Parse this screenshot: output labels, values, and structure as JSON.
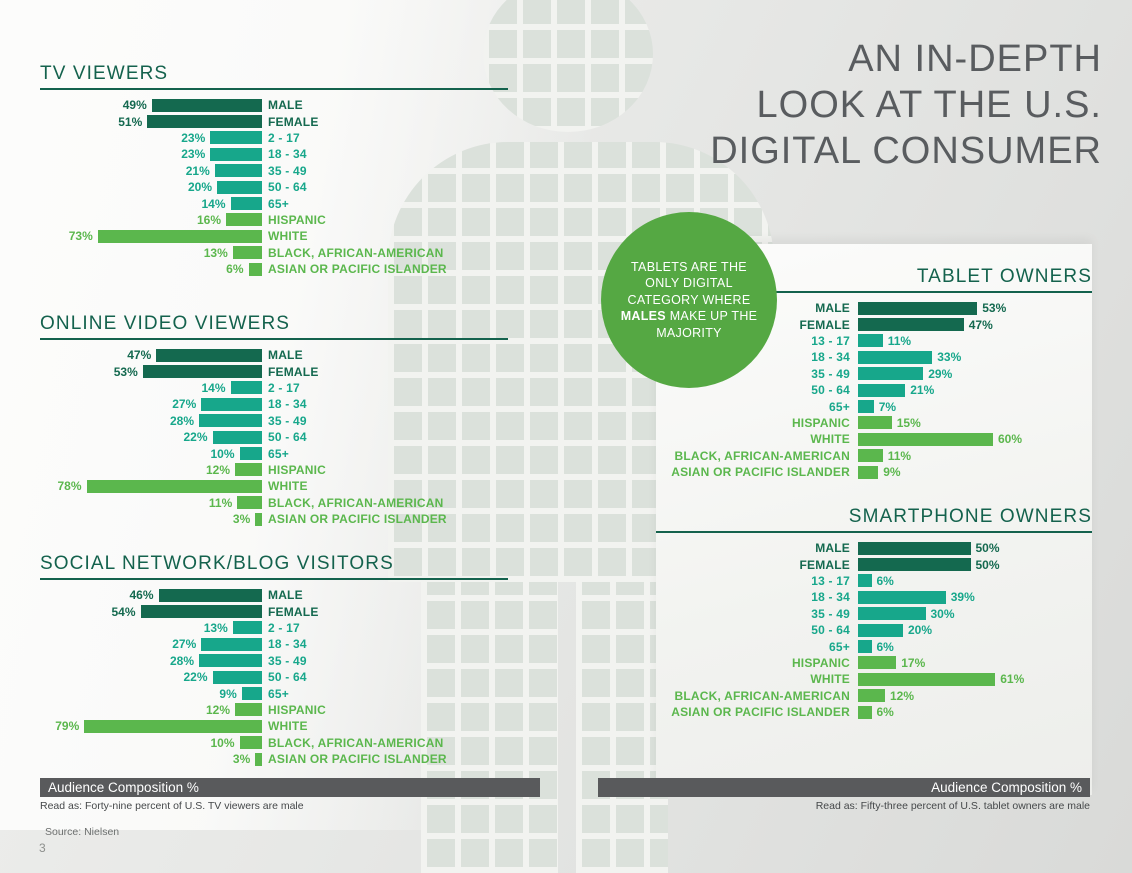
{
  "header": {
    "title_lines": [
      "AN IN-DEPTH",
      "LOOK AT THE U.S.",
      "DIGITAL CONSUMER"
    ]
  },
  "callout": {
    "text_pre": "TABLETS ARE THE ONLY DIGITAL CATEGORY WHERE",
    "bold_word": "MALES",
    "text_post": "MAKE UP THE MAJORITY"
  },
  "footer": {
    "left": {
      "bar_label": "Audience Composition %",
      "read_as": "Read as: Forty-nine percent of U.S. TV viewers are male"
    },
    "right": {
      "bar_label": "Audience Composition %",
      "read_as": "Read as: Fifty-three percent of U.S. tablet owners are male"
    },
    "source": "Source: Nielsen",
    "page_number": "3"
  },
  "colors": {
    "gender": "#14694f",
    "age": "#17a78b",
    "ethnicity": "#5bb74d",
    "section_title": "#14624d",
    "heading_text": "#595c5f",
    "footer_bar": "#595a5c",
    "callout_bg": "#55a843"
  },
  "chart_data": [
    {
      "id": "tv-viewers",
      "type": "bar",
      "orientation": "horizontal",
      "title": "TV VIEWERS",
      "unit": "%",
      "xlabel": "Audience Composition %",
      "categories": [
        "MALE",
        "FEMALE",
        "2 - 17",
        "18 - 34",
        "35 - 49",
        "50 - 64",
        "65+",
        "HISPANIC",
        "WHITE",
        "BLACK, AFRICAN-AMERICAN",
        "ASIAN OR PACIFIC ISLANDER"
      ],
      "values": [
        49,
        51,
        23,
        23,
        21,
        20,
        14,
        16,
        73,
        13,
        6
      ],
      "groups": [
        "gender",
        "gender",
        "age",
        "age",
        "age",
        "age",
        "age",
        "ethnicity",
        "ethnicity",
        "ethnicity",
        "ethnicity"
      ]
    },
    {
      "id": "online-video-viewers",
      "type": "bar",
      "orientation": "horizontal",
      "title": "ONLINE VIDEO VIEWERS",
      "unit": "%",
      "xlabel": "Audience Composition %",
      "categories": [
        "MALE",
        "FEMALE",
        "2 - 17",
        "18 - 34",
        "35 - 49",
        "50 - 64",
        "65+",
        "HISPANIC",
        "WHITE",
        "BLACK, AFRICAN-AMERICAN",
        "ASIAN OR PACIFIC ISLANDER"
      ],
      "values": [
        47,
        53,
        14,
        27,
        28,
        22,
        10,
        12,
        78,
        11,
        3
      ],
      "groups": [
        "gender",
        "gender",
        "age",
        "age",
        "age",
        "age",
        "age",
        "ethnicity",
        "ethnicity",
        "ethnicity",
        "ethnicity"
      ]
    },
    {
      "id": "social-network-blog-visitors",
      "type": "bar",
      "orientation": "horizontal",
      "title": "SOCIAL NETWORK/BLOG VISITORS",
      "unit": "%",
      "xlabel": "Audience Composition %",
      "categories": [
        "MALE",
        "FEMALE",
        "2 - 17",
        "18 - 34",
        "35 - 49",
        "50 - 64",
        "65+",
        "HISPANIC",
        "WHITE",
        "BLACK, AFRICAN-AMERICAN",
        "ASIAN OR PACIFIC ISLANDER"
      ],
      "values": [
        46,
        54,
        13,
        27,
        28,
        22,
        9,
        12,
        79,
        10,
        3
      ],
      "groups": [
        "gender",
        "gender",
        "age",
        "age",
        "age",
        "age",
        "age",
        "ethnicity",
        "ethnicity",
        "ethnicity",
        "ethnicity"
      ]
    },
    {
      "id": "tablet-owners",
      "type": "bar",
      "orientation": "horizontal",
      "title": "TABLET OWNERS",
      "unit": "%",
      "xlabel": "Audience Composition %",
      "categories": [
        "MALE",
        "FEMALE",
        "13 - 17",
        "18 - 34",
        "35 - 49",
        "50 - 64",
        "65+",
        "HISPANIC",
        "WHITE",
        "BLACK, AFRICAN-AMERICAN",
        "ASIAN OR PACIFIC ISLANDER"
      ],
      "values": [
        53,
        47,
        11,
        33,
        29,
        21,
        7,
        15,
        60,
        11,
        9
      ],
      "groups": [
        "gender",
        "gender",
        "age",
        "age",
        "age",
        "age",
        "age",
        "ethnicity",
        "ethnicity",
        "ethnicity",
        "ethnicity"
      ]
    },
    {
      "id": "smartphone-owners",
      "type": "bar",
      "orientation": "horizontal",
      "title": "SMARTPHONE OWNERS",
      "unit": "%",
      "xlabel": "Audience Composition %",
      "categories": [
        "MALE",
        "FEMALE",
        "13 - 17",
        "18 - 34",
        "35 - 49",
        "50 - 64",
        "65+",
        "HISPANIC",
        "WHITE",
        "BLACK, AFRICAN-AMERICAN",
        "ASIAN OR PACIFIC ISLANDER"
      ],
      "values": [
        50,
        50,
        6,
        39,
        30,
        20,
        6,
        17,
        61,
        12,
        6
      ],
      "groups": [
        "gender",
        "gender",
        "age",
        "age",
        "age",
        "age",
        "age",
        "ethnicity",
        "ethnicity",
        "ethnicity",
        "ethnicity"
      ]
    }
  ]
}
